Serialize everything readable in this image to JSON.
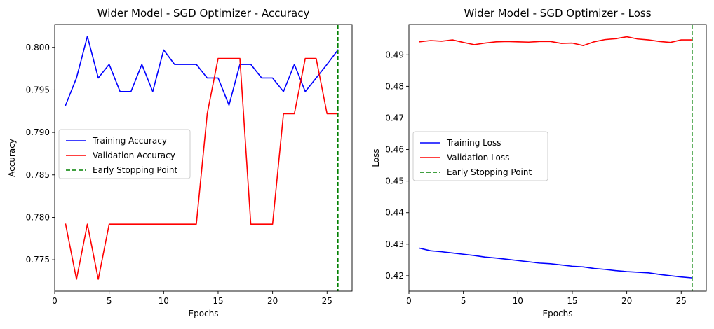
{
  "chart_data": [
    {
      "type": "line",
      "title": "Wider Model - SGD Optimizer - Accuracy",
      "xlabel": "Epochs",
      "ylabel": "Accuracy",
      "xlim": [
        0,
        27.3
      ],
      "ylim": [
        0.7713,
        0.8027
      ],
      "xticks": [
        0,
        5,
        10,
        15,
        20,
        25
      ],
      "yticks": [
        0.775,
        0.78,
        0.785,
        0.79,
        0.795,
        0.8
      ],
      "ytick_labels": [
        "0.775",
        "0.780",
        "0.785",
        "0.790",
        "0.795",
        "0.800"
      ],
      "legend_position": "center-left",
      "x": [
        1,
        2,
        3,
        4,
        5,
        6,
        7,
        8,
        9,
        10,
        11,
        12,
        13,
        14,
        15,
        16,
        17,
        18,
        19,
        20,
        21,
        22,
        23,
        24,
        25,
        26
      ],
      "series": [
        {
          "name": "Training Accuracy",
          "color": "#0000ff",
          "style": "solid",
          "values": [
            0.7932,
            0.7964,
            0.8013,
            0.7964,
            0.798,
            0.7948,
            0.7948,
            0.798,
            0.7948,
            0.7997,
            0.798,
            0.798,
            0.798,
            0.7964,
            0.7964,
            0.7932,
            0.798,
            0.798,
            0.7964,
            0.7964,
            0.7948,
            0.798,
            0.7948,
            0.7964,
            0.798,
            0.7997
          ]
        },
        {
          "name": "Validation Accuracy",
          "color": "#ff0000",
          "style": "solid",
          "values": [
            0.7792,
            0.7727,
            0.7792,
            0.7727,
            0.7792,
            0.7792,
            0.7792,
            0.7792,
            0.7792,
            0.7792,
            0.7792,
            0.7792,
            0.7792,
            0.7922,
            0.7987,
            0.7987,
            0.7987,
            0.7792,
            0.7792,
            0.7792,
            0.7922,
            0.7922,
            0.7987,
            0.7987,
            0.7922,
            0.7922
          ]
        }
      ],
      "vline": {
        "name": "Early Stopping Point",
        "x": 26,
        "color": "#008000",
        "style": "dashed"
      }
    },
    {
      "type": "line",
      "title": "Wider Model - SGD Optimizer - Loss",
      "xlabel": "Epochs",
      "ylabel": "Loss",
      "xlim": [
        0,
        27.3
      ],
      "ylim": [
        0.4151,
        0.4996
      ],
      "xticks": [
        0,
        5,
        10,
        15,
        20,
        25
      ],
      "yticks": [
        0.42,
        0.43,
        0.44,
        0.45,
        0.46,
        0.47,
        0.48,
        0.49
      ],
      "ytick_labels": [
        "0.42",
        "0.43",
        "0.44",
        "0.45",
        "0.46",
        "0.47",
        "0.48",
        "0.49"
      ],
      "legend_position": "center-left",
      "x": [
        1,
        2,
        3,
        4,
        5,
        6,
        7,
        8,
        9,
        10,
        11,
        12,
        13,
        14,
        15,
        16,
        17,
        18,
        19,
        20,
        21,
        22,
        23,
        24,
        25,
        26
      ],
      "series": [
        {
          "name": "Training Loss",
          "color": "#0000ff",
          "style": "solid",
          "values": [
            0.4287,
            0.4279,
            0.4276,
            0.4272,
            0.4268,
            0.4264,
            0.4259,
            0.4256,
            0.4252,
            0.4248,
            0.4244,
            0.424,
            0.4238,
            0.4234,
            0.423,
            0.4228,
            0.4223,
            0.422,
            0.4216,
            0.4213,
            0.4211,
            0.4209,
            0.4204,
            0.42,
            0.4196,
            0.4193
          ]
        },
        {
          "name": "Validation Loss",
          "color": "#ff0000",
          "style": "solid",
          "values": [
            0.4941,
            0.4945,
            0.4943,
            0.4947,
            0.4939,
            0.4932,
            0.4937,
            0.4941,
            0.4942,
            0.4941,
            0.494,
            0.4942,
            0.4942,
            0.4936,
            0.4937,
            0.4929,
            0.4941,
            0.4948,
            0.4951,
            0.4957,
            0.495,
            0.4947,
            0.4942,
            0.4939,
            0.4947,
            0.4947
          ]
        }
      ],
      "vline": {
        "name": "Early Stopping Point",
        "x": 26,
        "color": "#008000",
        "style": "dashed"
      }
    }
  ]
}
